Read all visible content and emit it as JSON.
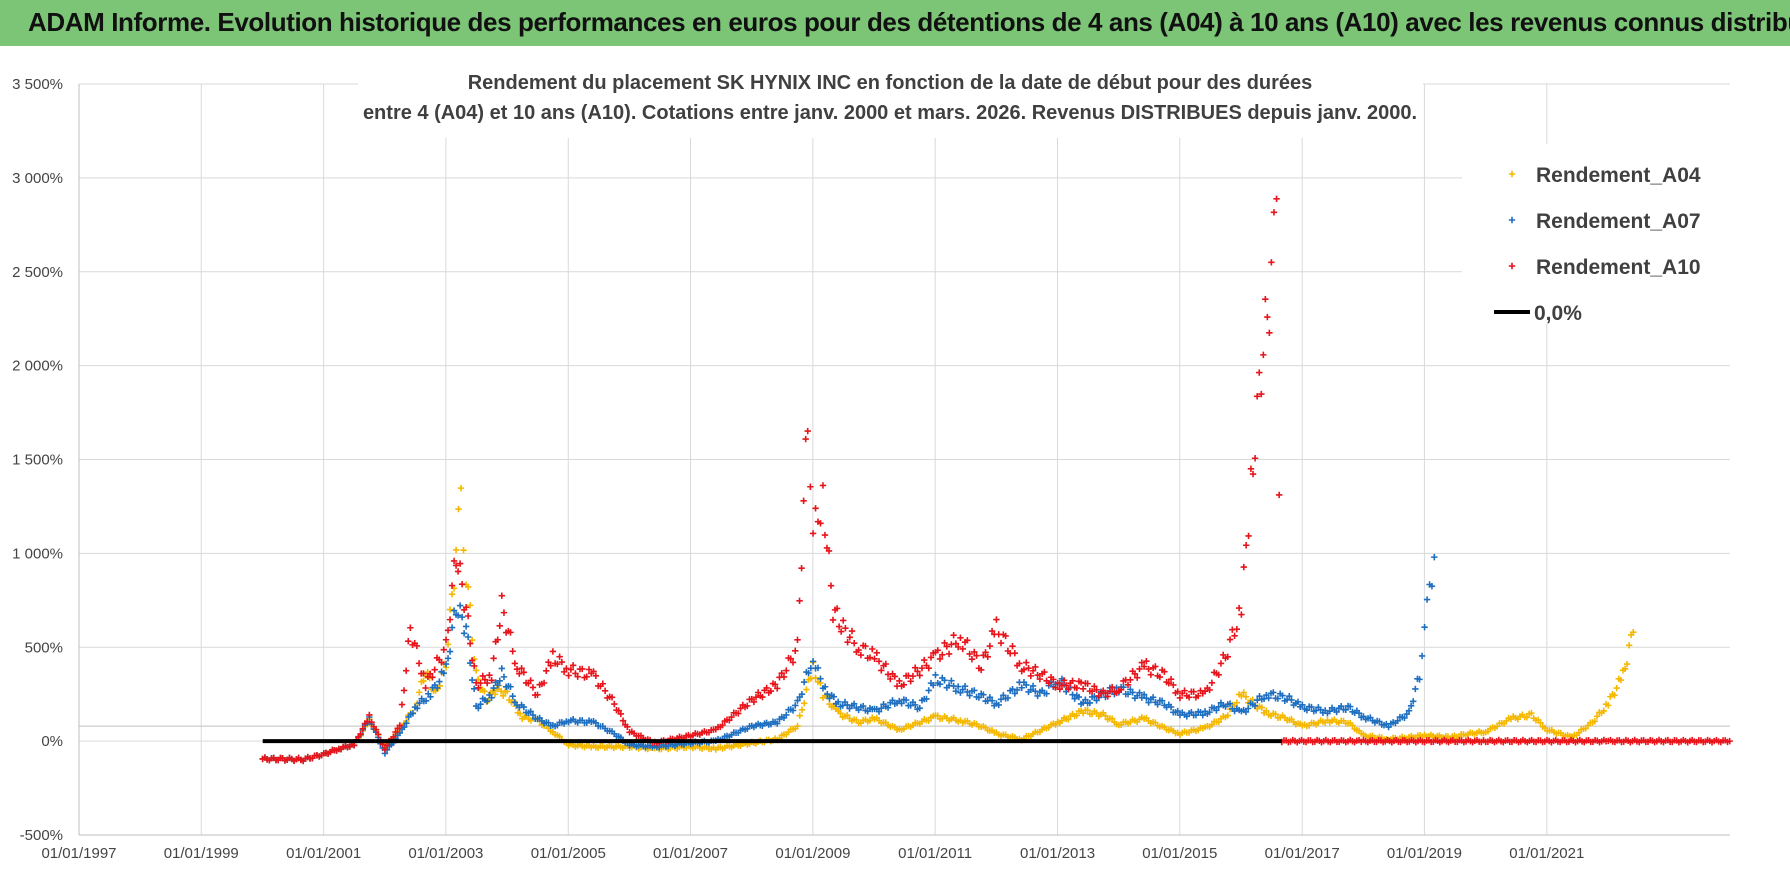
{
  "header": {
    "banner": "ADAM Informe. Evolution historique des performances en euros pour des détentions de 4 ans (A04) à 10 ans (A10) avec les revenus connus distribués"
  },
  "chart_data": {
    "type": "scatter",
    "title_line1": "Rendement du placement SK HYNIX INC en fonction de la date de début pour des durées",
    "title_line2": "entre 4 (A04) et 10 ans (A10). Cotations entre janv. 2000 et mars. 2026. Revenus DISTRIBUES depuis janv. 2000.",
    "xlabel": "",
    "ylabel": "",
    "x_range": [
      "1997-01-01",
      "2023-12-31"
    ],
    "x_ticks": [
      "01/01/1997",
      "01/01/1999",
      "01/01/2001",
      "01/01/2003",
      "01/01/2005",
      "01/01/2007",
      "01/01/2009",
      "01/01/2011",
      "01/01/2013",
      "01/01/2015",
      "01/01/2017",
      "01/01/2019",
      "01/01/2021"
    ],
    "ylim": [
      -500,
      3500
    ],
    "y_ticks": [
      {
        "value": -500,
        "label": "-500%"
      },
      {
        "value": 0,
        "label": "0%"
      },
      {
        "value": 500,
        "label": "500%"
      },
      {
        "value": 1000,
        "label": "1 000%"
      },
      {
        "value": 1500,
        "label": "1 500%"
      },
      {
        "value": 2000,
        "label": "2 000%"
      },
      {
        "value": 2500,
        "label": "2 500%"
      },
      {
        "value": 3000,
        "label": "3 000%"
      },
      {
        "value": 3500,
        "label": "3 500%"
      }
    ],
    "grid": true,
    "legend_position": "top-right",
    "series": [
      {
        "name": "Rendement_A04",
        "color": "#f5b800",
        "marker": "plus",
        "points": [
          [
            "2000-01-03",
            -95
          ],
          [
            "2000-05-01",
            -96
          ],
          [
            "2000-09-01",
            -98
          ],
          [
            "2001-01-02",
            -70
          ],
          [
            "2001-04-02",
            -40
          ],
          [
            "2001-07-02",
            -20
          ],
          [
            "2001-10-01",
            110
          ],
          [
            "2002-01-02",
            -30
          ],
          [
            "2002-04-01",
            60
          ],
          [
            "2002-07-01",
            180
          ],
          [
            "2002-09-02",
            370
          ],
          [
            "2002-11-01",
            250
          ],
          [
            "2003-01-02",
            420
          ],
          [
            "2003-03-03",
            1000
          ],
          [
            "2003-04-01",
            1300
          ],
          [
            "2003-05-02",
            900
          ],
          [
            "2003-07-01",
            350
          ],
          [
            "2003-09-01",
            220
          ],
          [
            "2003-11-03",
            280
          ],
          [
            "2004-01-02",
            250
          ],
          [
            "2004-04-01",
            130
          ],
          [
            "2004-07-01",
            110
          ],
          [
            "2004-10-01",
            50
          ],
          [
            "2005-01-03",
            -20
          ],
          [
            "2005-06-01",
            -30
          ],
          [
            "2006-01-02",
            -30
          ],
          [
            "2006-06-01",
            -40
          ],
          [
            "2007-01-02",
            -30
          ],
          [
            "2007-06-01",
            -40
          ],
          [
            "2008-01-02",
            -10
          ],
          [
            "2008-06-02",
            10
          ],
          [
            "2008-10-01",
            80
          ],
          [
            "2009-01-02",
            400
          ],
          [
            "2009-03-02",
            250
          ],
          [
            "2009-06-01",
            150
          ],
          [
            "2009-10-01",
            100
          ],
          [
            "2010-01-04",
            120
          ],
          [
            "2010-06-01",
            60
          ],
          [
            "2010-10-01",
            100
          ],
          [
            "2011-01-03",
            130
          ],
          [
            "2011-06-01",
            110
          ],
          [
            "2011-10-03",
            80
          ],
          [
            "2012-01-02",
            40
          ],
          [
            "2012-06-01",
            10
          ],
          [
            "2012-10-01",
            60
          ],
          [
            "2013-01-02",
            100
          ],
          [
            "2013-06-03",
            160
          ],
          [
            "2013-10-01",
            140
          ],
          [
            "2014-01-02",
            90
          ],
          [
            "2014-06-02",
            120
          ],
          [
            "2014-10-01",
            70
          ],
          [
            "2015-01-02",
            40
          ],
          [
            "2015-06-01",
            70
          ],
          [
            "2015-10-01",
            130
          ],
          [
            "2016-01-04",
            250
          ],
          [
            "2016-06-01",
            150
          ],
          [
            "2016-10-03",
            120
          ],
          [
            "2017-01-02",
            80
          ],
          [
            "2017-06-01",
            110
          ],
          [
            "2017-10-02",
            100
          ],
          [
            "2018-01-02",
            30
          ],
          [
            "2018-06-01",
            10
          ],
          [
            "2018-10-01",
            20
          ],
          [
            "2019-01-02",
            30
          ],
          [
            "2019-06-03",
            20
          ],
          [
            "2019-10-01",
            40
          ],
          [
            "2020-01-02",
            50
          ],
          [
            "2020-06-01",
            120
          ],
          [
            "2020-10-01",
            140
          ],
          [
            "2021-01-04",
            60
          ],
          [
            "2021-06-01",
            20
          ],
          [
            "2021-10-01",
            100
          ],
          [
            "2022-01-03",
            200
          ],
          [
            "2022-04-01",
            350
          ],
          [
            "2022-06-01",
            580
          ]
        ]
      },
      {
        "name": "Rendement_A07",
        "color": "#1f6fc1",
        "marker": "plus",
        "points": [
          [
            "2000-01-03",
            -95
          ],
          [
            "2000-05-01",
            -96
          ],
          [
            "2000-09-01",
            -98
          ],
          [
            "2001-01-02",
            -70
          ],
          [
            "2001-04-02",
            -40
          ],
          [
            "2001-07-02",
            -20
          ],
          [
            "2001-10-01",
            120
          ],
          [
            "2002-01-02",
            -60
          ],
          [
            "2002-04-01",
            40
          ],
          [
            "2002-07-01",
            180
          ],
          [
            "2002-10-01",
            250
          ],
          [
            "2003-01-02",
            380
          ],
          [
            "2003-03-03",
            720
          ],
          [
            "2003-05-02",
            600
          ],
          [
            "2003-07-01",
            180
          ],
          [
            "2003-10-01",
            250
          ],
          [
            "2003-12-01",
            360
          ],
          [
            "2004-03-01",
            200
          ],
          [
            "2004-07-01",
            120
          ],
          [
            "2004-10-01",
            80
          ],
          [
            "2005-01-03",
            110
          ],
          [
            "2005-06-01",
            100
          ],
          [
            "2005-10-03",
            40
          ],
          [
            "2006-01-02",
            -20
          ],
          [
            "2006-06-01",
            -30
          ],
          [
            "2007-01-02",
            -10
          ],
          [
            "2007-06-01",
            0
          ],
          [
            "2008-01-02",
            80
          ],
          [
            "2008-06-02",
            100
          ],
          [
            "2008-10-01",
            200
          ],
          [
            "2009-01-02",
            450
          ],
          [
            "2009-03-02",
            280
          ],
          [
            "2009-06-01",
            200
          ],
          [
            "2009-10-01",
            180
          ],
          [
            "2010-01-04",
            160
          ],
          [
            "2010-06-01",
            220
          ],
          [
            "2010-10-01",
            180
          ],
          [
            "2011-01-03",
            330
          ],
          [
            "2011-06-01",
            280
          ],
          [
            "2011-10-03",
            240
          ],
          [
            "2012-01-02",
            200
          ],
          [
            "2012-06-01",
            300
          ],
          [
            "2012-10-01",
            250
          ],
          [
            "2013-01-02",
            330
          ],
          [
            "2013-06-03",
            200
          ],
          [
            "2013-10-01",
            250
          ],
          [
            "2014-01-02",
            280
          ],
          [
            "2014-06-02",
            230
          ],
          [
            "2014-10-01",
            200
          ],
          [
            "2015-01-02",
            140
          ],
          [
            "2015-06-01",
            150
          ],
          [
            "2015-10-01",
            200
          ],
          [
            "2016-01-04",
            150
          ],
          [
            "2016-06-01",
            250
          ],
          [
            "2016-10-03",
            230
          ],
          [
            "2017-01-02",
            180
          ],
          [
            "2017-06-01",
            160
          ],
          [
            "2017-10-02",
            180
          ],
          [
            "2018-01-02",
            130
          ],
          [
            "2018-06-01",
            80
          ],
          [
            "2018-10-01",
            150
          ],
          [
            "2018-12-03",
            350
          ],
          [
            "2019-01-02",
            600
          ],
          [
            "2019-02-01",
            800
          ],
          [
            "2019-03-01",
            980
          ]
        ]
      },
      {
        "name": "Rendement_A10",
        "color": "#e8141b",
        "marker": "plus",
        "points": [
          [
            "2000-01-03",
            -95
          ],
          [
            "2000-05-01",
            -96
          ],
          [
            "2000-09-01",
            -98
          ],
          [
            "2001-01-02",
            -70
          ],
          [
            "2001-04-02",
            -40
          ],
          [
            "2001-07-02",
            -20
          ],
          [
            "2001-10-01",
            130
          ],
          [
            "2002-01-02",
            -40
          ],
          [
            "2002-04-01",
            80
          ],
          [
            "2002-06-03",
            600
          ],
          [
            "2002-09-02",
            300
          ],
          [
            "2003-01-02",
            500
          ],
          [
            "2003-03-03",
            1000
          ],
          [
            "2003-05-02",
            700
          ],
          [
            "2003-07-01",
            300
          ],
          [
            "2003-10-01",
            350
          ],
          [
            "2003-12-01",
            720
          ],
          [
            "2004-03-01",
            400
          ],
          [
            "2004-07-01",
            250
          ],
          [
            "2004-10-01",
            450
          ],
          [
            "2005-01-03",
            380
          ],
          [
            "2005-06-01",
            350
          ],
          [
            "2005-10-03",
            200
          ],
          [
            "2006-01-02",
            50
          ],
          [
            "2006-06-01",
            -10
          ],
          [
            "2007-01-02",
            30
          ],
          [
            "2007-06-01",
            60
          ],
          [
            "2008-01-02",
            220
          ],
          [
            "2008-06-02",
            300
          ],
          [
            "2008-10-01",
            500
          ],
          [
            "2008-12-01",
            1750
          ],
          [
            "2009-01-02",
            1100
          ],
          [
            "2009-03-02",
            1300
          ],
          [
            "2009-05-01",
            700
          ],
          [
            "2009-07-01",
            600
          ],
          [
            "2009-10-01",
            500
          ],
          [
            "2010-01-04",
            450
          ],
          [
            "2010-06-01",
            300
          ],
          [
            "2010-10-01",
            380
          ],
          [
            "2011-01-03",
            450
          ],
          [
            "2011-06-01",
            550
          ],
          [
            "2011-10-03",
            400
          ],
          [
            "2012-01-02",
            600
          ],
          [
            "2012-06-01",
            400
          ],
          [
            "2012-10-01",
            350
          ],
          [
            "2013-01-02",
            300
          ],
          [
            "2013-06-03",
            300
          ],
          [
            "2013-10-01",
            250
          ],
          [
            "2014-01-02",
            280
          ],
          [
            "2014-06-02",
            400
          ],
          [
            "2014-10-01",
            350
          ],
          [
            "2015-01-02",
            250
          ],
          [
            "2015-06-01",
            250
          ],
          [
            "2015-10-01",
            450
          ],
          [
            "2016-01-04",
            700
          ],
          [
            "2016-03-01",
            1350
          ],
          [
            "2016-05-02",
            2000
          ],
          [
            "2016-07-01",
            2450
          ],
          [
            "2016-08-01",
            2850
          ],
          [
            "2016-09-01",
            0
          ],
          [
            "2018-01-02",
            0
          ],
          [
            "2020-01-02",
            0
          ],
          [
            "2022-01-03",
            0
          ],
          [
            "2023-12-29",
            0
          ]
        ]
      },
      {
        "name": "0,0%",
        "color": "#000000",
        "marker": "line",
        "points": [
          [
            "2000-01-03",
            0
          ],
          [
            "2016-09-01",
            0
          ]
        ]
      }
    ]
  }
}
